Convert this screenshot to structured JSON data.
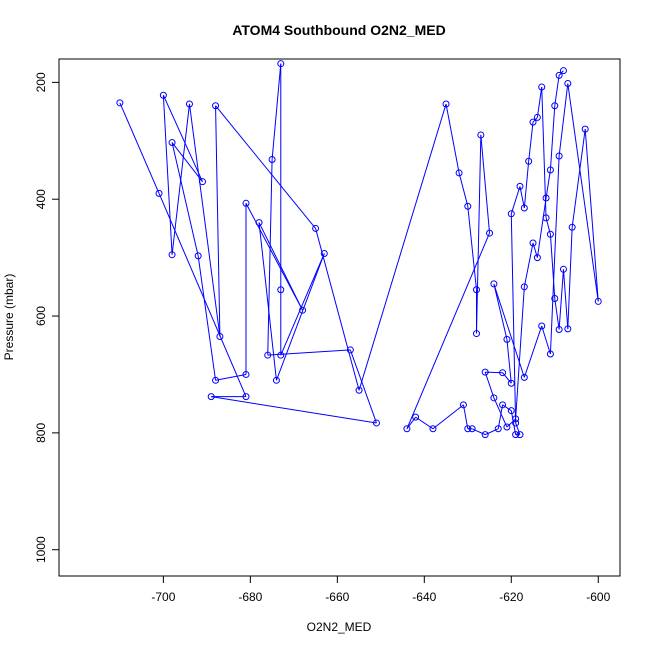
{
  "chart_data": {
    "type": "line",
    "title": "ATOM4 Southbound O2N2_MED",
    "xlabel": "O2N2_MED",
    "ylabel": "Pressure (mbar)",
    "xlim": [
      -724,
      -595
    ],
    "ylim": [
      1045,
      160
    ],
    "y_reversed": true,
    "x_ticks": [
      -700,
      -680,
      -660,
      -640,
      -620,
      -600
    ],
    "y_ticks": [
      200,
      400,
      600,
      800,
      1000
    ],
    "marker": "open-circle",
    "series_color": "#0000ff",
    "grid": false,
    "series": [
      {
        "name": "",
        "points": [
          [
            -710,
            235
          ],
          [
            -701,
            390
          ],
          [
            -681,
            738
          ],
          [
            -689,
            738
          ],
          [
            -651,
            783
          ],
          [
            -657,
            658
          ],
          [
            -676,
            667
          ],
          [
            -675,
            332
          ],
          [
            -673,
            168
          ],
          [
            -673,
            555
          ],
          [
            -673,
            667
          ],
          [
            -663,
            493
          ],
          [
            -674,
            710
          ],
          [
            -678,
            440
          ],
          [
            -668,
            590
          ],
          [
            -681,
            407
          ],
          [
            -681,
            700
          ],
          [
            -688,
            710
          ],
          [
            -692,
            497
          ],
          [
            -698,
            303
          ],
          [
            -691,
            370
          ],
          [
            -700,
            222
          ],
          [
            -698,
            495
          ],
          [
            -694,
            237
          ],
          [
            -687,
            635
          ],
          [
            -688,
            240
          ],
          [
            -665,
            450
          ],
          [
            -655,
            727
          ],
          [
            -635,
            237
          ],
          [
            -632,
            355
          ],
          [
            -630,
            412
          ],
          [
            -628,
            555
          ],
          [
            -628,
            630
          ],
          [
            -627,
            290
          ],
          [
            -625,
            458
          ],
          [
            -644,
            793
          ],
          [
            -642,
            773
          ],
          [
            -638,
            793
          ],
          [
            -631,
            752
          ],
          [
            -630,
            793
          ],
          [
            -629,
            793
          ],
          [
            -626,
            803
          ],
          [
            -623,
            793
          ],
          [
            -622,
            752
          ],
          [
            -620,
            762
          ],
          [
            -619,
            803
          ],
          [
            -618,
            803
          ],
          [
            -619,
            783
          ],
          [
            -620,
            425
          ],
          [
            -618,
            378
          ],
          [
            -617,
            415
          ],
          [
            -616,
            335
          ],
          [
            -615,
            268
          ],
          [
            -614,
            260
          ],
          [
            -613,
            208
          ],
          [
            -612,
            432
          ],
          [
            -611,
            460
          ],
          [
            -610,
            570
          ],
          [
            -609,
            623
          ],
          [
            -608,
            520
          ],
          [
            -607,
            622
          ],
          [
            -606,
            448
          ],
          [
            -603,
            280
          ],
          [
            -600,
            575
          ],
          [
            -607,
            202
          ],
          [
            -609,
            326
          ],
          [
            -611,
            665
          ],
          [
            -613,
            617
          ],
          [
            -617,
            705
          ],
          [
            -624,
            545
          ],
          [
            -621,
            640
          ],
          [
            -620,
            715
          ],
          [
            -622,
            697
          ],
          [
            -626,
            696
          ],
          [
            -624,
            740
          ],
          [
            -621,
            790
          ],
          [
            -619,
            776
          ],
          [
            -617,
            550
          ],
          [
            -615,
            475
          ],
          [
            -614,
            500
          ],
          [
            -612,
            398
          ],
          [
            -611,
            350
          ],
          [
            -610,
            240
          ],
          [
            -609,
            188
          ],
          [
            -608,
            180
          ]
        ]
      }
    ]
  }
}
